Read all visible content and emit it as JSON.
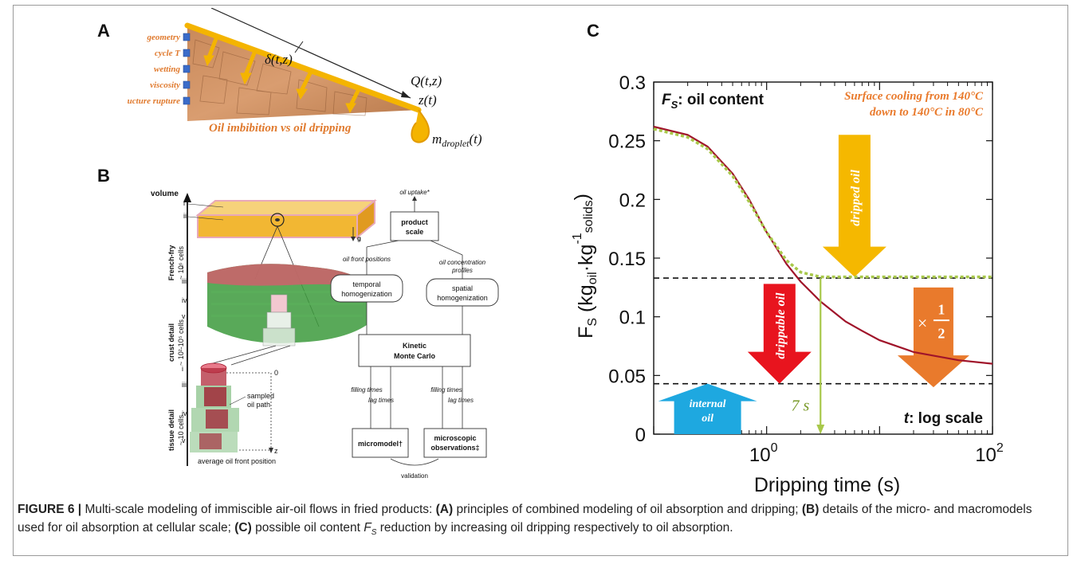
{
  "panels": {
    "a": "A",
    "b": "B",
    "c": "C"
  },
  "panel_a": {
    "factors": [
      "geometry",
      "cycle T",
      "wetting",
      "viscosity",
      "Structure rupture"
    ],
    "title": "Oil imbibition vs oil dripping",
    "delta": "δ(t,z)",
    "q": "Q(t,z)",
    "z": "z(t)",
    "m_droplet": "m",
    "m_droplet_sub": "droplet",
    "m_droplet_arg": "(t)",
    "colors": {
      "orange": "#e07a2e",
      "yellow": "#f4b400",
      "factor_box": "#3b6cc9"
    }
  },
  "panel_b": {
    "axis": "volume",
    "scales": [
      "French-fry",
      "~ 10⁶ cells",
      "crust detail",
      "~ 10²-10⁵ cells",
      "tissue detail",
      "~ 10 cells"
    ],
    "roman_fry": [
      "i",
      "ii"
    ],
    "roman_crust": [
      "i",
      "iii",
      "iv",
      "v"
    ],
    "roman_tissue": [
      "i",
      "iii",
      "iv",
      "v"
    ],
    "g": "g",
    "zero": "0",
    "zed": "z",
    "sampled_path": "sampled oil path",
    "avg_front": "average oil front position",
    "flow": {
      "oil_uptake": "oil uptake*",
      "product_scale": "product scale",
      "oil_front_positions": "oil front positions",
      "oil_conc_profiles": "oil concentration profiles",
      "temporal": "temporal homogenization",
      "spatial": "spatial homogenization",
      "kmc": "Kinetic Monte Carlo",
      "filling_times": "filling times",
      "lag_times": "lag times",
      "micromodel": "micromodel†",
      "microscopic": "microscopic observations‡",
      "validation": "validation"
    }
  },
  "chart_data": {
    "type": "line",
    "xlabel": "Dripping time (s)",
    "ylabel": "F",
    "ylabel_sub": "S",
    "ylabel_units": "(kg",
    "ylabel_units_oil": "oil",
    "ylabel_units_kg": "·kg",
    "ylabel_units_exp": "-1",
    "ylabel_units_solids": "solids",
    "ylabel_units_close": ")",
    "x_scale": "log",
    "xlim": [
      0.1,
      100
    ],
    "ylim": [
      0,
      0.3
    ],
    "yticks": [
      "0",
      "0.05",
      "0.1",
      "0.15",
      "0.2",
      "0.25",
      "0.3"
    ],
    "xtick_base": "10",
    "xticks_exp": [
      "0",
      "2"
    ],
    "series": [
      {
        "color": "#a0142a",
        "style": "solid",
        "x": [
          0.1,
          0.2,
          0.3,
          0.5,
          0.7,
          1.0,
          1.5,
          2.0,
          3.0,
          5.0,
          7.0,
          10.0,
          20.0,
          50.0,
          100.0
        ],
        "y": [
          0.262,
          0.255,
          0.245,
          0.222,
          0.2,
          0.172,
          0.145,
          0.13,
          0.113,
          0.096,
          0.088,
          0.08,
          0.07,
          0.063,
          0.06
        ]
      },
      {
        "color": "#a8c84a",
        "style": "dotted",
        "x": [
          0.1,
          0.2,
          0.3,
          0.5,
          0.7,
          1.0,
          1.5,
          2.0,
          3.0,
          5.0,
          10.0,
          100.0
        ],
        "y": [
          0.26,
          0.253,
          0.243,
          0.22,
          0.198,
          0.172,
          0.148,
          0.138,
          0.134,
          0.134,
          0.134,
          0.134
        ]
      }
    ],
    "hlines": [
      0.133,
      0.043
    ],
    "annotations": {
      "fs_label": "F",
      "fs_sub": "S",
      "fs_rest": ": oil content",
      "surface_cooling_1": "Surface cooling from 140°C",
      "surface_cooling_2": "down to 140°C in 80°C",
      "dripped": "dripped oil",
      "drippable": "drippable oil",
      "internal": "internal oil",
      "times": "×",
      "half_num": "1",
      "half_den": "2",
      "seven": "7 s",
      "seven_x": 3,
      "t_label": "t",
      "t_rest": ": log scale"
    },
    "colors": {
      "curve": "#a0142a",
      "dotted": "#a8c84a",
      "yellow": "#f5b800",
      "red": "#e8141e",
      "orange": "#e97a2c",
      "blue": "#1ea8e0",
      "green": "#a8c84a"
    }
  },
  "caption": {
    "label": "FIGURE 6 |",
    "text1": " Multi-scale modeling of immiscible air-oil flows in fried products: ",
    "a": "(A)",
    "text2": " principles of combined modeling of oil absorption and dripping; ",
    "b": "(B)",
    "text3": " details of the micro- and macromodels used for oil absorption at cellular scale; ",
    "c": "(C)",
    "text4": " possible oil content ",
    "fs": "F",
    "fs_sub": "S",
    "text5": " reduction by increasing oil dripping respectively to oil absorption."
  }
}
